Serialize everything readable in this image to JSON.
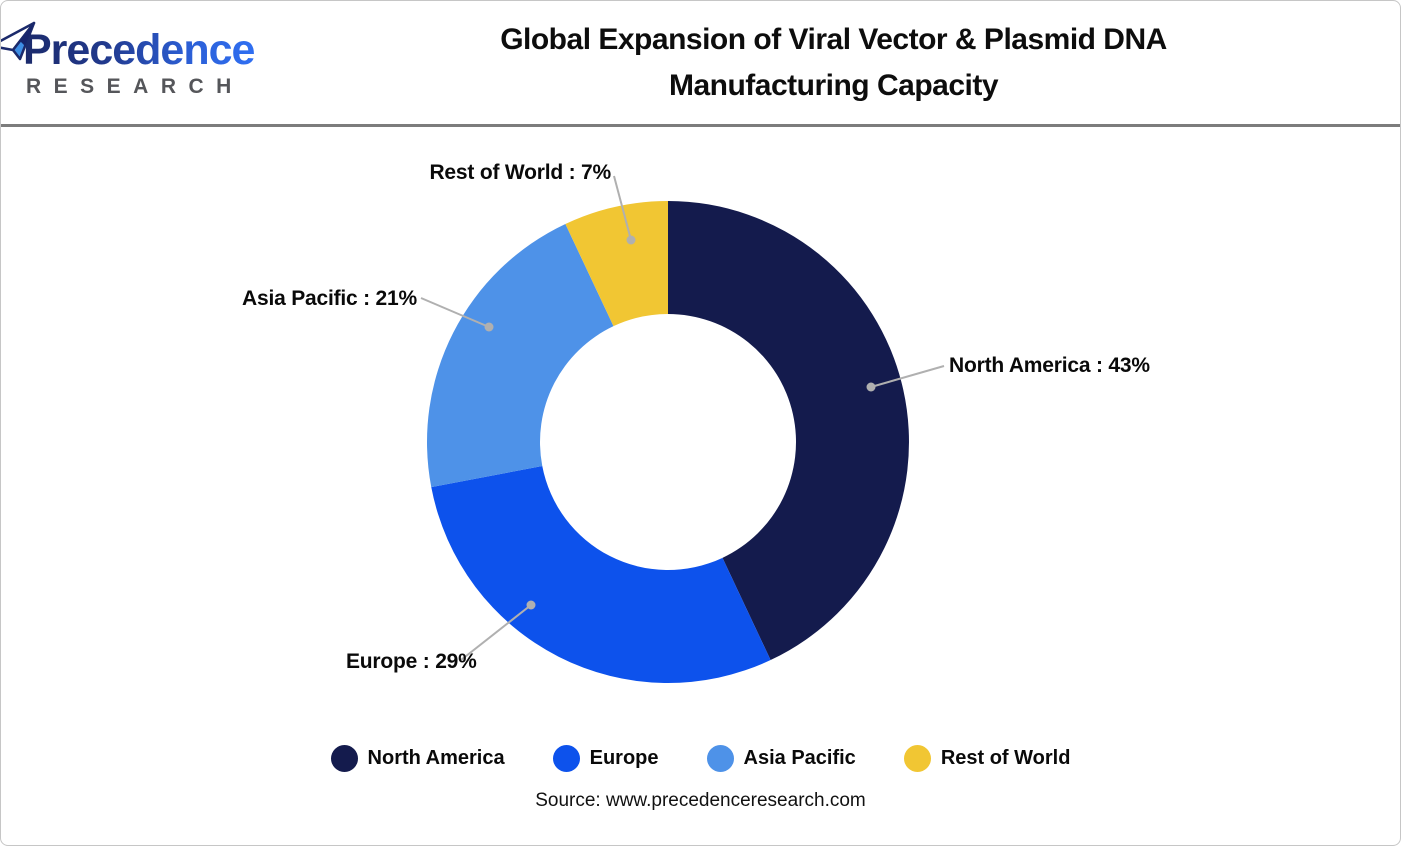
{
  "header": {
    "logo": {
      "brand": "Precedence",
      "sub": "RESEARCH"
    },
    "title_line1": "Global Expansion of Viral Vector & Plasmid DNA",
    "title_line2": "Manufacturing Capacity"
  },
  "chart_data": {
    "type": "pie",
    "subtype": "donut",
    "title": "Global Expansion of Viral Vector & Plasmid DNA Manufacturing Capacity",
    "categories": [
      "North America",
      "Europe",
      "Asia Pacific",
      "Rest of World"
    ],
    "values": [
      43,
      29,
      21,
      7
    ],
    "unit": "%",
    "colors": [
      "#141b4d",
      "#0d52ec",
      "#4e92e8",
      "#f1c633"
    ],
    "start_angle_deg": 0,
    "direction": "clockwise",
    "donut_hole_ratio": 0.53,
    "legend_position": "bottom",
    "callout_labels": [
      "North America : 43%",
      "Europe : 29%",
      "Asia Pacific : 21%",
      "Rest of World : 7%"
    ],
    "leader_line_color": "#b0b0b0"
  },
  "source": "Source: www.precedenceresearch.com"
}
